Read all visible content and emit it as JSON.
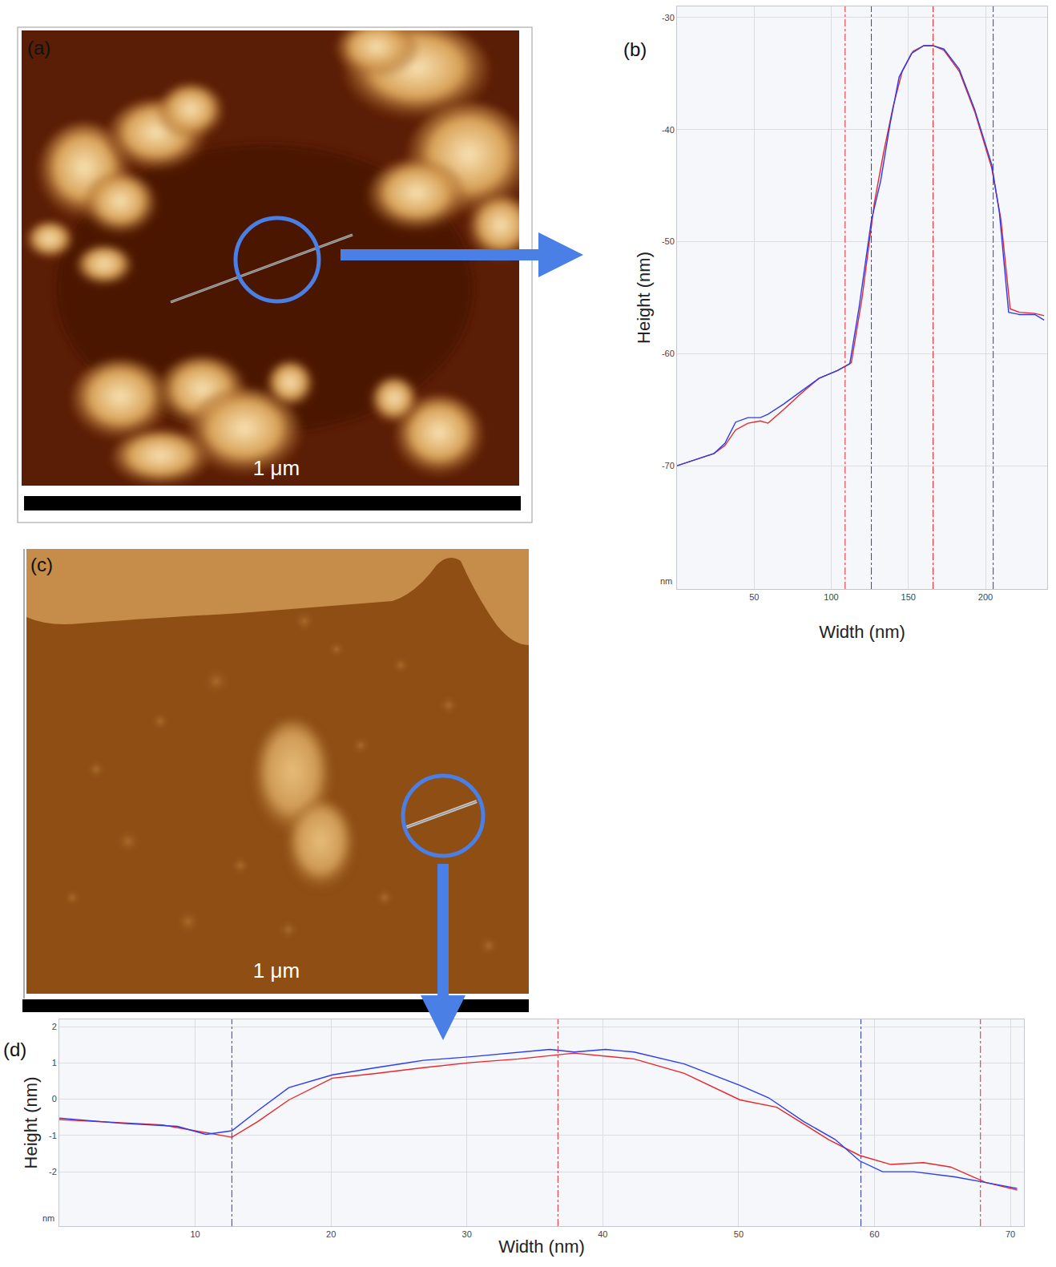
{
  "images": [
    {
      "label": "(a)",
      "scale_bar": "1 μm"
    },
    {
      "label": "(c)",
      "scale_bar": "1 μm"
    }
  ],
  "chart_data": [
    {
      "type": "line",
      "label": "(b)",
      "x_label": "Width (nm)",
      "y_label": "Height (nm)",
      "annotations": [
        "nm"
      ],
      "xlim": [
        0,
        240
      ],
      "xticks": [
        50,
        100,
        150,
        200
      ],
      "ylim": [
        -81,
        -29
      ],
      "yticks": [
        -70,
        -60,
        -50,
        -40,
        -30
      ],
      "grid": true,
      "series": [
        {
          "color": "#e8262a",
          "x": [
            0,
            13,
            24,
            31,
            38,
            46,
            54,
            59,
            69,
            80,
            92,
            104,
            113,
            120,
            128,
            134,
            140,
            146,
            153,
            160,
            166,
            173,
            183,
            193,
            204,
            210,
            216,
            222,
            232,
            238
          ],
          "values": [
            -70,
            -69.4,
            -68.9,
            -68.2,
            -66.8,
            -66.2,
            -66,
            -66.2,
            -65,
            -63.6,
            -62.2,
            -61.5,
            -60.8,
            -55,
            -46.5,
            -42,
            -38,
            -34.8,
            -33,
            -32.5,
            -32.5,
            -32.9,
            -34.8,
            -38.4,
            -43.4,
            -48,
            -56,
            -56.3,
            -56.4,
            -56.6
          ]
        },
        {
          "color": "#2a3cf0",
          "x": [
            0,
            13,
            24,
            31,
            38,
            46,
            54,
            59,
            69,
            80,
            92,
            104,
            112,
            118,
            126,
            132,
            138,
            144,
            152,
            160,
            166,
            173,
            183,
            193,
            204,
            209,
            215,
            222,
            232,
            238
          ],
          "values": [
            -70,
            -69.4,
            -68.9,
            -68,
            -66.1,
            -65.7,
            -65.7,
            -65.4,
            -64.5,
            -63.4,
            -62.2,
            -61.5,
            -60.9,
            -55.9,
            -48.1,
            -44.6,
            -39.6,
            -35.3,
            -33.2,
            -32.5,
            -32.5,
            -32.8,
            -34.6,
            -38.2,
            -43.1,
            -47.4,
            -56.3,
            -56.5,
            -56.5,
            -57
          ]
        }
      ],
      "markers": [
        {
          "x": 109,
          "color": "#e8262a",
          "line_style": "dashdot"
        },
        {
          "x": 126,
          "color": "#2a3cf0",
          "line_style": "dashdot"
        },
        {
          "x": 166,
          "color": "#e8262a",
          "line_style": "dashdot"
        },
        {
          "x": 205,
          "color": "#2a3cf0",
          "line_style": "dashdot"
        }
      ]
    },
    {
      "type": "line",
      "label": "(d)",
      "x_label": "Width (nm)",
      "y_label": "Height (nm)",
      "annotations": [
        "nm"
      ],
      "xlim": [
        0,
        71
      ],
      "xticks": [
        10,
        20,
        30,
        40,
        50,
        60,
        70
      ],
      "ylim": [
        -3.5,
        2.2
      ],
      "yticks": [
        -2,
        -1,
        0,
        1,
        2
      ],
      "grid": true,
      "series": [
        {
          "color": "#e8262a",
          "x": [
            0,
            7.6,
            12.7,
            14.6,
            16.9,
            20.1,
            23.3,
            26.8,
            30.3,
            33.8,
            37.9,
            42.3,
            46,
            50.1,
            52.8,
            56.6,
            58.9,
            61.2,
            63.6,
            65.6,
            68.2,
            70.5
          ],
          "values": [
            -0.56,
            -0.71,
            -1.05,
            -0.62,
            -0.02,
            0.58,
            0.71,
            0.87,
            1.01,
            1.11,
            1.27,
            1.11,
            0.71,
            -0.02,
            -0.22,
            -1.11,
            -1.55,
            -1.8,
            -1.75,
            -1.87,
            -2.3,
            -2.5
          ]
        },
        {
          "color": "#2a3cf0",
          "x": [
            0,
            4.7,
            8.7,
            10.8,
            12.7,
            14.6,
            16.9,
            20.1,
            23.3,
            26.8,
            30.3,
            33.8,
            36.1,
            37.9,
            40.2,
            42.3,
            46,
            50.1,
            52.2,
            54.8,
            57.1,
            58.9,
            60.6,
            62.9,
            65.9,
            68.2,
            70.5
          ],
          "values": [
            -0.52,
            -0.67,
            -0.75,
            -0.97,
            -0.87,
            -0.32,
            0.32,
            0.67,
            0.87,
            1.07,
            1.17,
            1.3,
            1.37,
            1.3,
            1.37,
            1.3,
            0.97,
            0.38,
            0.04,
            -0.62,
            -1.11,
            -1.7,
            -2,
            -2,
            -2.14,
            -2.3,
            -2.46
          ]
        }
      ],
      "markers": [
        {
          "x": 12.7,
          "color": "#2a3cf0",
          "line_style": "dashdot"
        },
        {
          "x": 36.7,
          "color": "#e8262a",
          "line_style": "dashdot"
        },
        {
          "x": 59,
          "color": "#2a3cf0",
          "line_style": "dashdot"
        },
        {
          "x": 67.8,
          "color": "#e8262a",
          "line_style": "dashdot"
        }
      ]
    }
  ]
}
